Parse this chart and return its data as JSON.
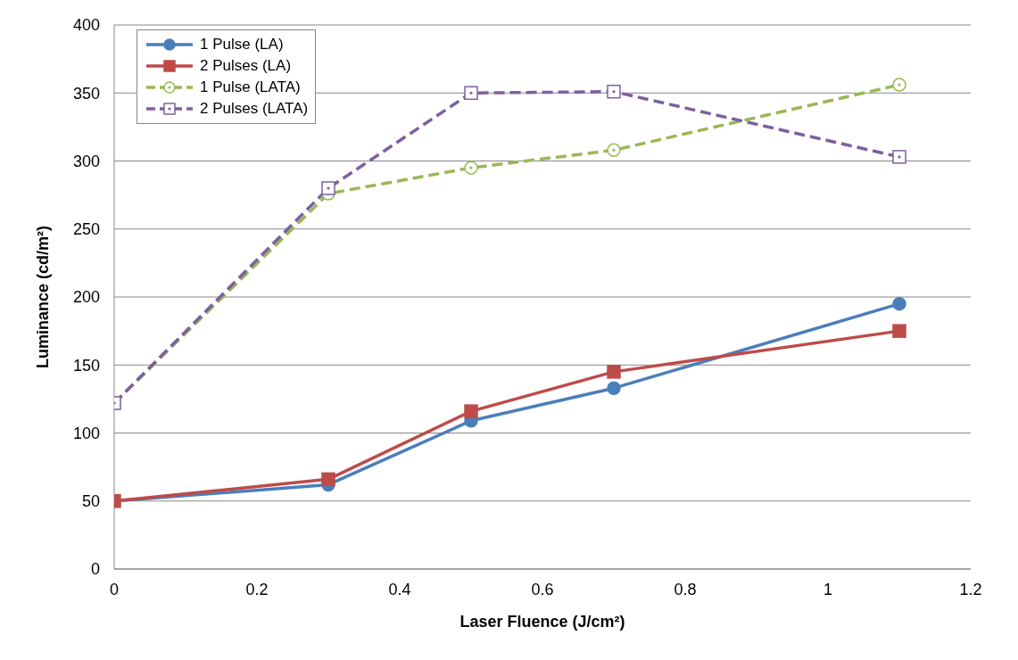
{
  "chart_data": {
    "type": "line",
    "xlabel": "Laser Fluence (J/cm²)",
    "ylabel": "Luminance (cd/m²)",
    "x": [
      0,
      0.3,
      0.5,
      0.7,
      1.1
    ],
    "series": [
      {
        "name": "1 Pulse (LA)",
        "color": "#4a7ebb",
        "values": [
          50,
          62,
          109,
          133,
          195
        ],
        "marker": "circle",
        "line_style": "solid"
      },
      {
        "name": "2 Pulses (LA)",
        "color": "#be4b48",
        "values": [
          50,
          66,
          116,
          145,
          175
        ],
        "marker": "square",
        "line_style": "solid"
      },
      {
        "name": "1 Pulse (LATA)",
        "color": "#98b954",
        "values": [
          122,
          276,
          295,
          308,
          356
        ],
        "marker": "circle",
        "line_style": "dashed"
      },
      {
        "name": "2 Pulses (LATA)",
        "color": "#7d60a0",
        "values": [
          122,
          280,
          350,
          351,
          303
        ],
        "marker": "square",
        "line_style": "dashed"
      }
    ],
    "xlim": [
      0,
      1.2
    ],
    "xticks": [
      0,
      0.2,
      0.4,
      0.6,
      0.8,
      1,
      1.2
    ],
    "ylim": [
      0,
      400
    ],
    "yticks": [
      0,
      50,
      100,
      150,
      200,
      250,
      300,
      350,
      400
    ],
    "grid": "y",
    "legend": "top left"
  }
}
